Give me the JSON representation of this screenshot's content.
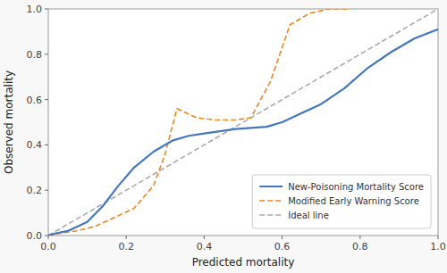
{
  "chart_data": {
    "type": "line",
    "xlabel": "Predicted mortality",
    "ylabel": "Observed mortality",
    "xlim": [
      0.0,
      1.0
    ],
    "ylim": [
      0.0,
      1.0
    ],
    "xticks": [
      {
        "value": 0.0,
        "label": "0.0"
      },
      0.2,
      0.4,
      0.6,
      0.8,
      {
        "value": 1.0,
        "label": "1.0"
      }
    ],
    "yticks": [
      {
        "value": 0.0,
        "label": "0.0"
      },
      0.2,
      0.4,
      0.6,
      0.8,
      {
        "value": 1.0,
        "label": "1.0"
      }
    ],
    "grid": false,
    "legend": "lower right",
    "series": [
      {
        "name": "New-Poisoning Mortality Score",
        "color": "#4477bb",
        "line_style": "solid",
        "x": [
          0.0,
          0.02,
          0.05,
          0.1,
          0.14,
          0.18,
          0.22,
          0.27,
          0.32,
          0.36,
          0.4,
          0.44,
          0.48,
          0.52,
          0.56,
          0.6,
          0.65,
          0.7,
          0.76,
          0.82,
          0.88,
          0.94,
          1.0
        ],
        "values": [
          0.0,
          0.01,
          0.02,
          0.06,
          0.13,
          0.22,
          0.3,
          0.37,
          0.42,
          0.44,
          0.45,
          0.46,
          0.47,
          0.475,
          0.48,
          0.5,
          0.54,
          0.58,
          0.65,
          0.74,
          0.81,
          0.87,
          0.91
        ]
      },
      {
        "name": "Modified Early Warning Score",
        "color": "#e88820",
        "line_style": "dashed",
        "x": [
          0.0,
          0.03,
          0.07,
          0.12,
          0.17,
          0.22,
          0.27,
          0.3,
          0.33,
          0.38,
          0.43,
          0.48,
          0.52,
          0.57,
          0.62,
          0.67,
          0.72,
          0.77
        ],
        "values": [
          0.0,
          0.01,
          0.02,
          0.04,
          0.08,
          0.12,
          0.22,
          0.36,
          0.56,
          0.52,
          0.51,
          0.51,
          0.52,
          0.68,
          0.93,
          0.98,
          1.0,
          1.0
        ]
      },
      {
        "name": "Ideal line",
        "color": "#aaaaaa",
        "line_style": "dashed",
        "x": [
          0.0,
          1.0
        ],
        "values": [
          0.0,
          1.0
        ]
      }
    ]
  }
}
